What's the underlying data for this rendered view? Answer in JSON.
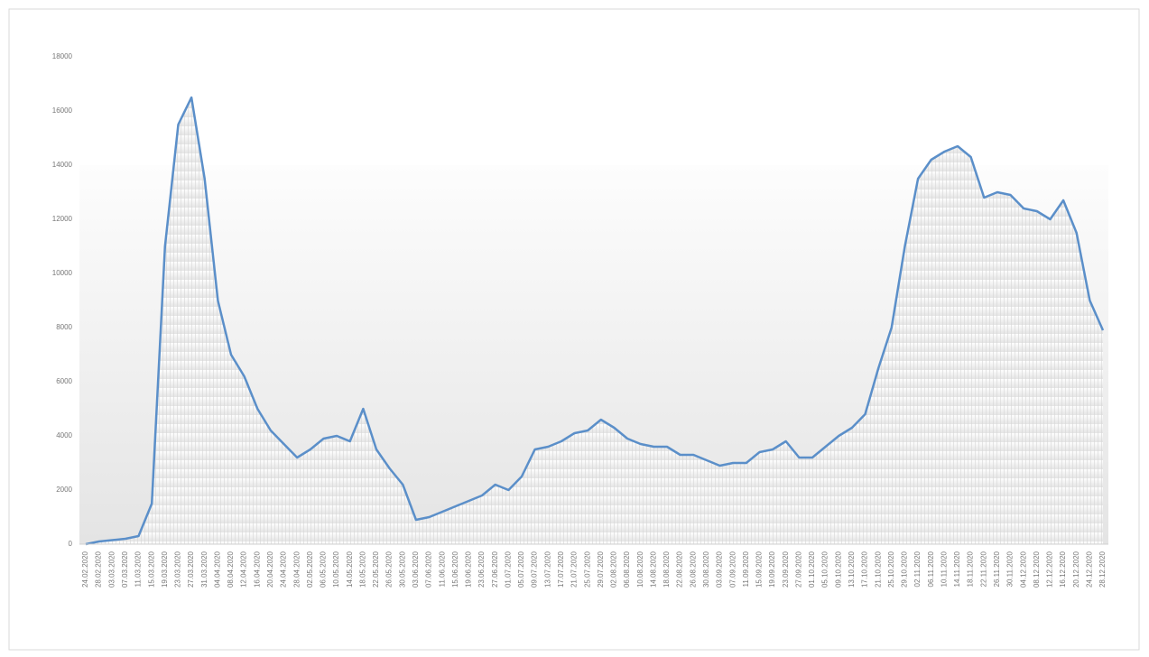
{
  "chart_data": {
    "type": "line",
    "categories": [
      "24.02.2020",
      "28.02.2020",
      "03.03.2020",
      "07.03.2020",
      "11.03.2020",
      "15.03.2020",
      "19.03.2020",
      "23.03.2020",
      "27.03.2020",
      "31.03.2020",
      "04.04.2020",
      "08.04.2020",
      "12.04.2020",
      "16.04.2020",
      "20.04.2020",
      "24.04.2020",
      "28.04.2020",
      "02.05.2020",
      "06.05.2020",
      "10.05.2020",
      "14.05.2020",
      "18.05.2020",
      "22.05.2020",
      "26.05.2020",
      "30.05.2020",
      "03.06.2020",
      "07.06.2020",
      "11.06.2020",
      "15.06.2020",
      "19.06.2020",
      "23.06.2020",
      "27.06.2020",
      "01.07.2020",
      "05.07.2020",
      "09.07.2020",
      "13.07.2020",
      "17.07.2020",
      "21.07.2020",
      "25.07.2020",
      "29.07.2020",
      "02.08.2020",
      "06.08.2020",
      "10.08.2020",
      "14.08.2020",
      "18.08.2020",
      "22.08.2020",
      "26.08.2020",
      "30.08.2020",
      "03.09.2020",
      "07.09.2020",
      "11.09.2020",
      "15.09.2020",
      "19.09.2020",
      "23.09.2020",
      "27.09.2020",
      "01.10.2020",
      "05.10.2020",
      "09.10.2020",
      "13.10.2020",
      "17.10.2020",
      "21.10.2020",
      "25.10.2020",
      "29.10.2020",
      "02.11.2020",
      "06.11.2020",
      "10.11.2020",
      "14.11.2020",
      "18.11.2020",
      "22.11.2020",
      "26.11.2020",
      "30.11.2020",
      "04.12.2020",
      "08.12.2020",
      "12.12.2020",
      "16.12.2020",
      "20.12.2020",
      "24.12.2020",
      "28.12.2020"
    ],
    "values": [
      0,
      100,
      150,
      200,
      300,
      1500,
      11000,
      15500,
      16500,
      13500,
      9000,
      7000,
      6200,
      5000,
      4200,
      3700,
      3200,
      3500,
      3900,
      4000,
      3800,
      5000,
      3500,
      2800,
      2200,
      900,
      1000,
      1200,
      1400,
      1600,
      1800,
      2200,
      2000,
      2500,
      3500,
      3600,
      3800,
      4100,
      4200,
      4600,
      4300,
      3900,
      3700,
      3600,
      3600,
      3300,
      3300,
      3100,
      2900,
      3000,
      3000,
      3400,
      3500,
      3800,
      3200,
      3200,
      3600,
      4000,
      4300,
      4800,
      6500,
      8000,
      11000,
      13500,
      14200,
      14500,
      14700,
      14300,
      12800,
      13000,
      12900,
      12400,
      12300,
      12000,
      12700,
      11500,
      9000,
      7900
    ],
    "color": "#5b8fc9",
    "ylim": [
      0,
      18000
    ],
    "yticks": [
      0,
      2000,
      4000,
      6000,
      8000,
      10000,
      12000,
      14000,
      16000,
      18000
    ],
    "grid": false
  }
}
